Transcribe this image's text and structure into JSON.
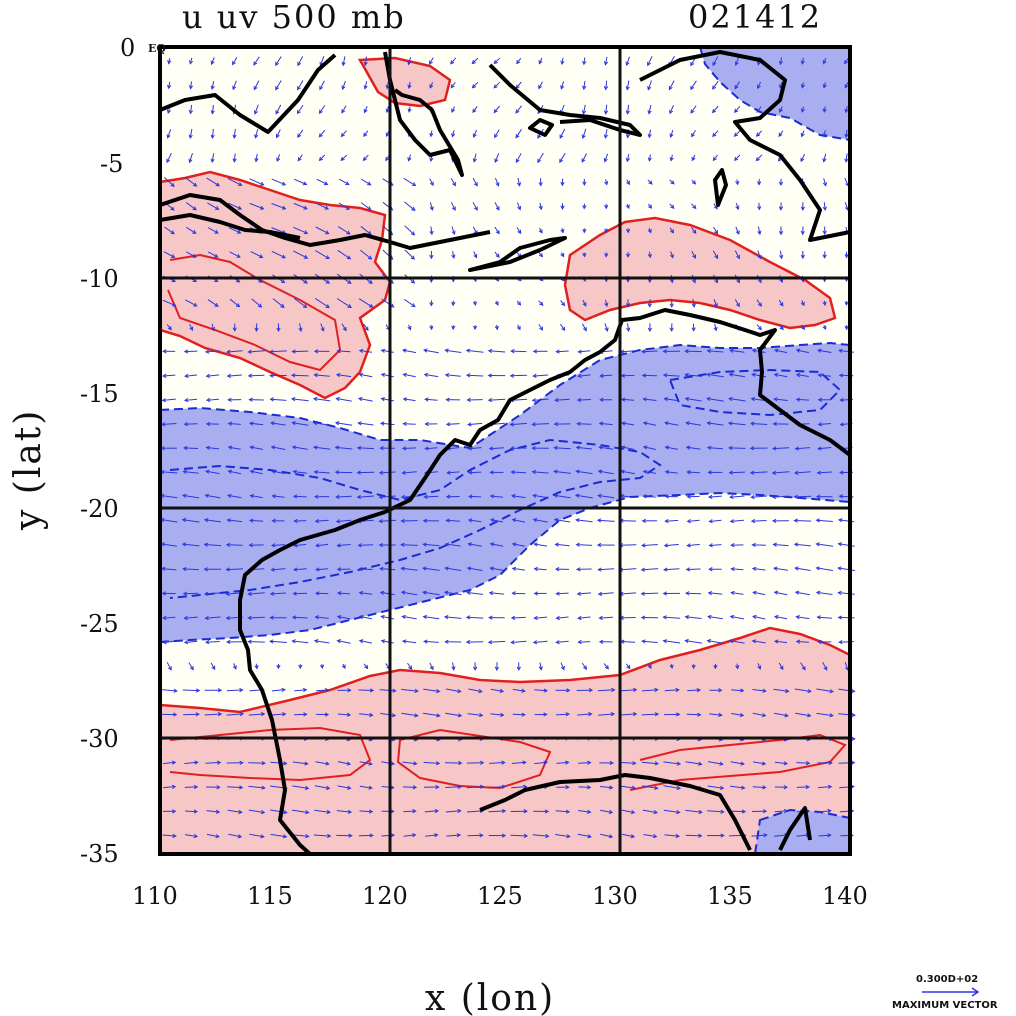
{
  "title": {
    "left": "u uv 500 mb",
    "right": "021412"
  },
  "axes": {
    "xlabel": "x (lon)",
    "ylabel": "y (lat)",
    "x_ticks": [
      "110",
      "115",
      "120",
      "125",
      "130",
      "135",
      "140"
    ],
    "y_ticks": [
      "0",
      "-5",
      "-10",
      "-15",
      "-20",
      "-25",
      "-30",
      "-35"
    ],
    "eq_label": "EQ"
  },
  "vector_legend": {
    "value": "0.300D+02",
    "label": "MAXIMUM VECTOR"
  },
  "colors": {
    "positive_fill": "#f7c6c6",
    "positive_line": "#e02020",
    "negative_fill": "#a9aef0",
    "negative_line": "#1a2bd6",
    "background": "#fffff5",
    "coast": "#000000",
    "vector": "#2a37e0"
  },
  "chart_data": {
    "type": "heatmap",
    "variable": "u",
    "level": "500 mb",
    "xlim": [
      110,
      140
    ],
    "ylim": [
      -35,
      0
    ],
    "grid_lines": {
      "lon": [
        120,
        130
      ],
      "lat": [
        -10,
        -20,
        -30
      ]
    },
    "positive_u_bands": [
      {
        "lon_range": [
          110,
          120
        ],
        "lat_range": [
          -15,
          -6
        ]
      },
      {
        "lon_range": [
          128,
          140
        ],
        "lat_range": [
          -12,
          -8
        ]
      },
      {
        "lon_range": [
          120,
          124
        ],
        "lat_range": [
          -2,
          0
        ]
      },
      {
        "lon_range": [
          110,
          140
        ],
        "lat_range": [
          -35,
          -26
        ]
      }
    ],
    "negative_u_bands": [
      {
        "lon_range": [
          110,
          140
        ],
        "lat_range": [
          -26,
          -13
        ]
      },
      {
        "lon_range": [
          135,
          140
        ],
        "lat_range": [
          -4,
          0
        ]
      },
      {
        "lon_range": [
          136,
          140
        ],
        "lat_range": [
          -35,
          -33
        ]
      }
    ]
  }
}
